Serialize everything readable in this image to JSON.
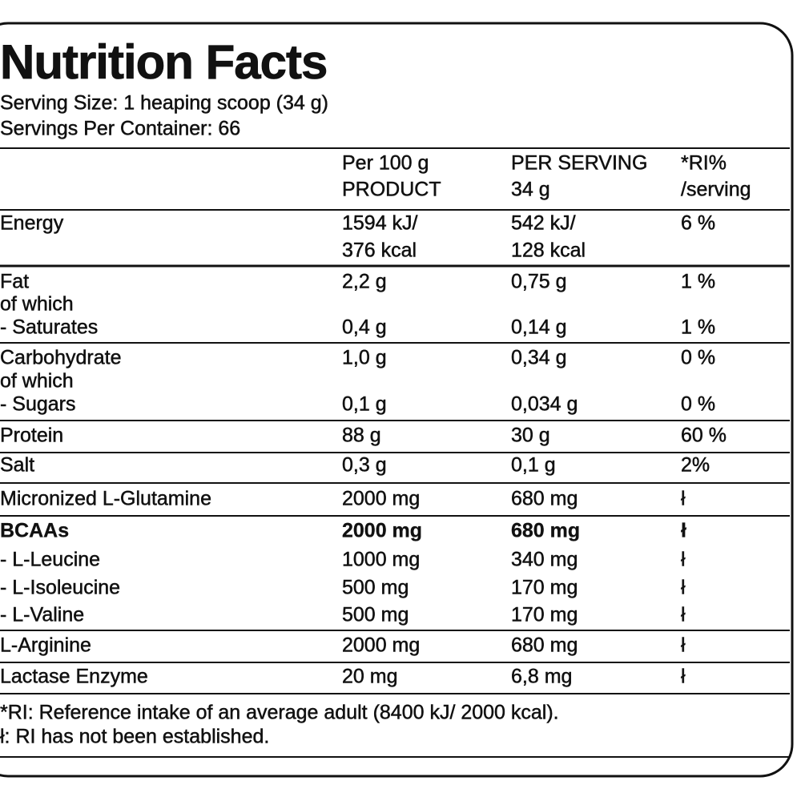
{
  "header": {
    "title": "Nutrition Facts",
    "serving_size": "Serving Size: 1 heaping scoop (34 g)",
    "servings_per_container": "Servings Per Container: 66"
  },
  "table": {
    "groups": [
      {
        "lines": [
          [
            null,
            "Per 100 g",
            "PER SERVING",
            "*RI%"
          ],
          [
            null,
            "PRODUCT",
            "34 g",
            "/serving"
          ]
        ]
      },
      {
        "lines": [
          [
            "Energy",
            "1594 kJ/",
            "542 kJ/",
            "6 %"
          ],
          [
            null,
            "376 kcal",
            "128 kcal",
            null
          ]
        ]
      },
      {
        "lines": [
          [
            "Fat",
            "2,2 g",
            "0,75 g",
            "1 %"
          ],
          [
            "of which",
            null,
            null,
            null
          ],
          [
            "- Saturates",
            "0,4 g",
            "0,14 g",
            "1 %"
          ]
        ]
      },
      {
        "lines": [
          [
            "Carbohydrate",
            "1,0 g",
            "0,34 g",
            "0 %"
          ],
          [
            "of which",
            null,
            null,
            null
          ],
          [
            "- Sugars",
            "0,1 g",
            "0,034 g",
            "0 %"
          ]
        ]
      },
      {
        "lines": [
          [
            "Protein",
            "88 g",
            "30 g",
            "60 %"
          ]
        ]
      },
      {
        "lines": [
          [
            "Salt",
            "0,3 g",
            "0,1 g",
            "2%"
          ]
        ]
      },
      {
        "lines": [
          [
            "Micronized L-Glutamine",
            "2000 mg",
            "680 mg",
            "ł"
          ]
        ]
      },
      {
        "bold_first_line": true,
        "lines": [
          [
            "BCAAs",
            "2000 mg",
            "680 mg",
            "ł"
          ],
          [
            "- L-Leucine",
            "1000 mg",
            "340 mg",
            "ł"
          ],
          [
            "- L-Isoleucine",
            "500 mg",
            "170 mg",
            "ł"
          ],
          [
            "- L-Valine",
            "500 mg",
            "170 mg",
            "ł"
          ]
        ]
      },
      {
        "lines": [
          [
            "L-Arginine",
            "2000 mg",
            "680 mg",
            "ł"
          ]
        ]
      },
      {
        "lines": [
          [
            "Lactase Enzyme",
            "20 mg",
            "6,8 mg",
            "ł"
          ]
        ]
      }
    ]
  },
  "footnotes": [
    "*RI: Reference intake of an average adult (8400 kJ/ 2000 kcal).",
    "ł: RI has not been established."
  ]
}
